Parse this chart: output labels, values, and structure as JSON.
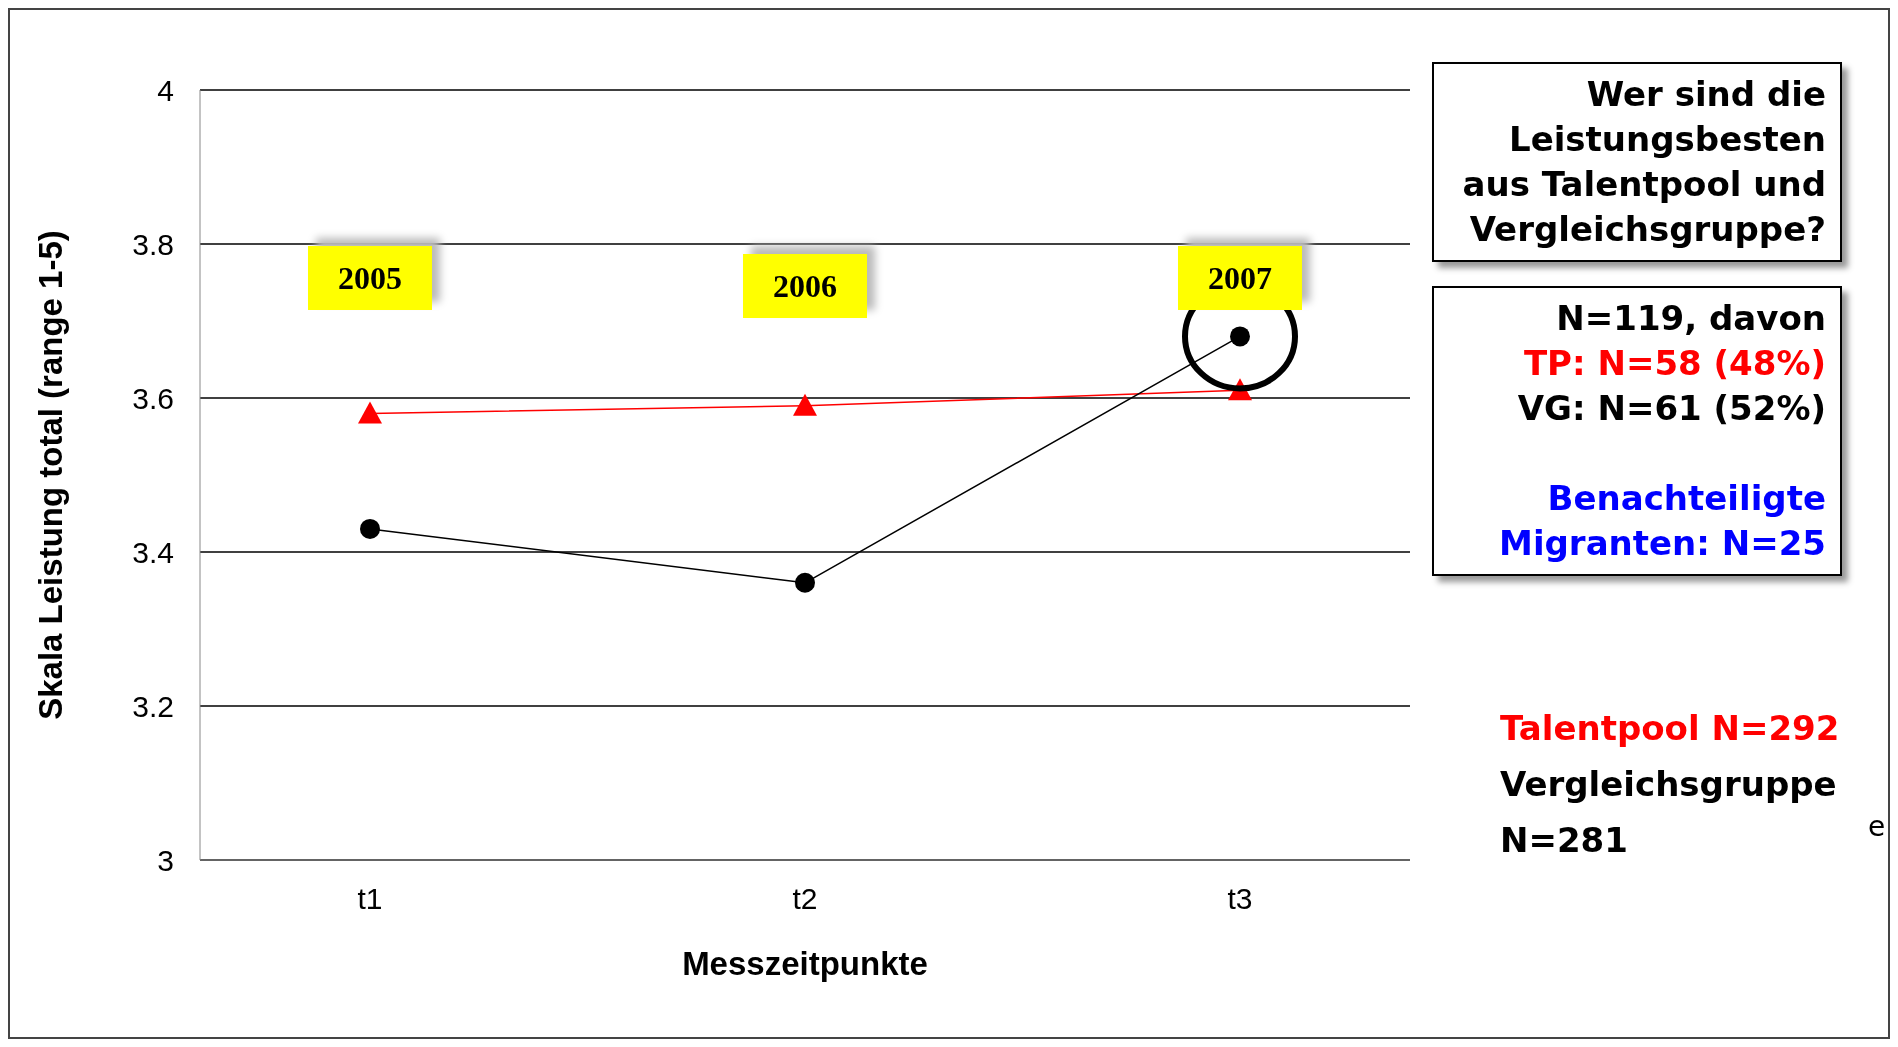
{
  "chart_data": {
    "type": "line",
    "xlabel": "Messzeitpunkte",
    "ylabel": "Skala Leistung total (range 1-5)",
    "categories": [
      "t1",
      "t2",
      "t3"
    ],
    "series": [
      {
        "name": "Talentpool N=292",
        "color": "#ff0000",
        "marker": "triangle",
        "values": [
          3.58,
          3.59,
          3.61
        ]
      },
      {
        "name": "Vergleichsgruppe N=281",
        "color": "#000000",
        "marker": "circle",
        "values": [
          3.43,
          3.36,
          3.68
        ]
      }
    ],
    "ylim": [
      3,
      4
    ],
    "yticks": [
      3,
      3.2,
      3.4,
      3.6,
      3.8,
      4
    ],
    "grid": "y",
    "legend": "right",
    "line_style": "solid",
    "annotations": [
      "Wer sind die Leistungsbesten aus Talentpool und Vergleichsgruppe?",
      "N=119, davon",
      "TP: N=58 (48%)",
      "VG: N=61 (52%)",
      "Benachteiligte Migranten: N=25",
      "e",
      "2005",
      "2006",
      "2007"
    ]
  }
}
